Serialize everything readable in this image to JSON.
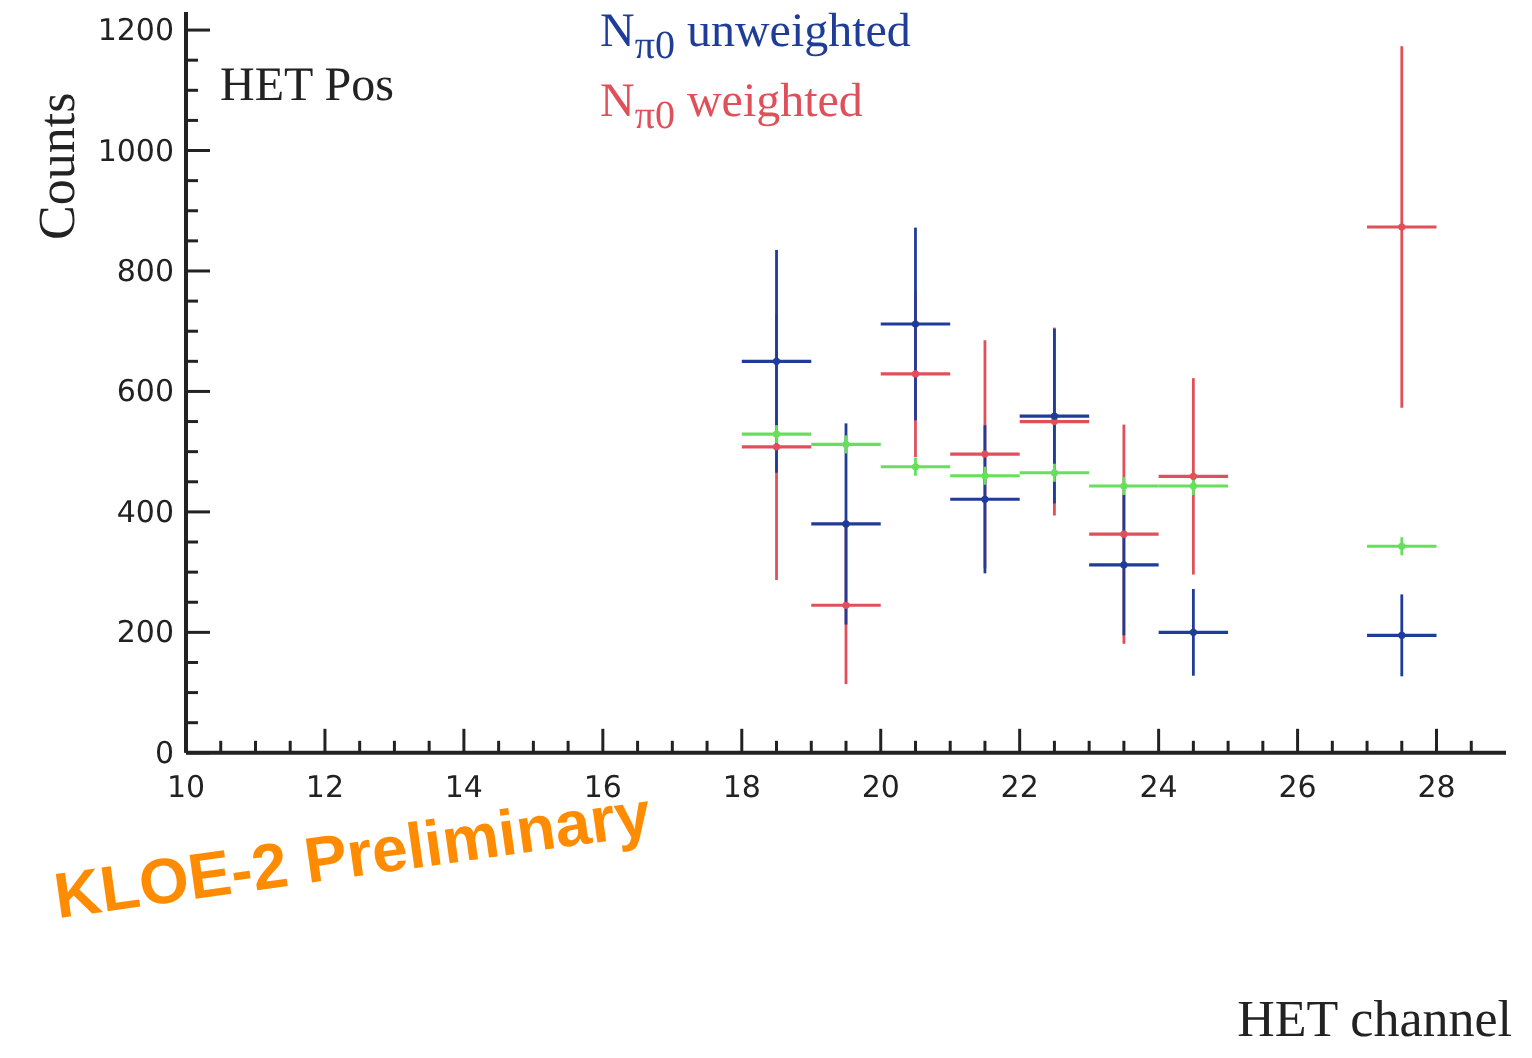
{
  "chart_data": {
    "type": "scatter",
    "xlabel": "HET channel",
    "ylabel": "Counts",
    "annotations": [
      "HET Pos",
      "KLOE-2 Preliminary"
    ],
    "x": [
      18.5,
      19.5,
      20.5,
      21.5,
      22.5,
      23.5,
      24.5,
      27.5
    ],
    "series": [
      {
        "name": "N$_{π0}$ unweighted",
        "color": "#1f3c99",
        "values": [
          650,
          380,
          712,
          421,
          559,
          312,
          200,
          195
        ],
        "errors": [
          185,
          167,
          160,
          123,
          145,
          117,
          72,
          68
        ],
        "xerrors": [
          0.5,
          0.5,
          0.5,
          0.5,
          0.5,
          0.5,
          0.5,
          0.5
        ]
      },
      {
        "name": "N$_{π0}$ weighted",
        "color": "#e0505a",
        "values": [
          508,
          245,
          629,
          496,
          550,
          363,
          459,
          873
        ],
        "errors": [
          221,
          131,
          138,
          189,
          156,
          182,
          163,
          300
        ],
        "xerrors": [
          0.5,
          0.5,
          0.5,
          0.5,
          0.5,
          0.5,
          0.5,
          0.5
        ]
      },
      {
        "color": "#66e05a",
        "values": [
          529,
          512,
          475,
          460,
          465,
          443,
          443,
          343
        ],
        "errors": [
          15,
          15,
          15,
          15,
          15,
          15,
          15,
          15
        ],
        "xerrors": [
          0.5,
          0.5,
          0.5,
          0.5,
          0.5,
          0.5,
          0.5,
          0.5
        ]
      }
    ],
    "xlim": [
      10,
      29
    ],
    "xticks": [
      10,
      {
        "value": 10.5,
        "label": null
      },
      {
        "value": 11,
        "label": null
      },
      {
        "value": 11.5,
        "label": null
      },
      12,
      {
        "value": 12.5,
        "label": null
      },
      {
        "value": 13,
        "label": null
      },
      {
        "value": 13.5,
        "label": null
      },
      14,
      {
        "value": 14.5,
        "label": null
      },
      {
        "value": 15,
        "label": null
      },
      {
        "value": 15.5,
        "label": null
      },
      16,
      {
        "value": 16.5,
        "label": null
      },
      {
        "value": 17,
        "label": null
      },
      {
        "value": 17.5,
        "label": null
      },
      18,
      {
        "value": 18.5,
        "label": null
      },
      {
        "value": 19,
        "label": null
      },
      {
        "value": 19.5,
        "label": null
      },
      20,
      {
        "value": 20.5,
        "label": null
      },
      {
        "value": 21,
        "label": null
      },
      {
        "value": 21.5,
        "label": null
      },
      22,
      {
        "value": 22.5,
        "label": null
      },
      {
        "value": 23,
        "label": null
      },
      {
        "value": 23.5,
        "label": null
      },
      24,
      {
        "value": 24.5,
        "label": null
      },
      {
        "value": 25,
        "label": null
      },
      {
        "value": 25.5,
        "label": null
      },
      26,
      {
        "value": 26.5,
        "label": null
      },
      {
        "value": 27,
        "label": null
      },
      {
        "value": 27.5,
        "label": null
      },
      28,
      {
        "value": 28.5,
        "label": null
      }
    ],
    "ylim": [
      0,
      1230
    ],
    "yticks": [
      0,
      {
        "value": 50,
        "label": null
      },
      {
        "value": 100,
        "label": null
      },
      {
        "value": 150,
        "label": null
      },
      200,
      {
        "value": 250,
        "label": null
      },
      {
        "value": 300,
        "label": null
      },
      {
        "value": 350,
        "label": null
      },
      400,
      {
        "value": 450,
        "label": null
      },
      {
        "value": 500,
        "label": null
      },
      {
        "value": 550,
        "label": null
      },
      600,
      {
        "value": 650,
        "label": null
      },
      {
        "value": 700,
        "label": null
      },
      {
        "value": 750,
        "label": null
      },
      800,
      {
        "value": 850,
        "label": null
      },
      {
        "value": 900,
        "label": null
      },
      {
        "value": 950,
        "label": null
      },
      1000,
      {
        "value": 1050,
        "label": null
      },
      {
        "value": 1100,
        "label": null
      },
      {
        "value": 1150,
        "label": null
      },
      1200
    ],
    "legend": "top",
    "marker": "circle"
  }
}
